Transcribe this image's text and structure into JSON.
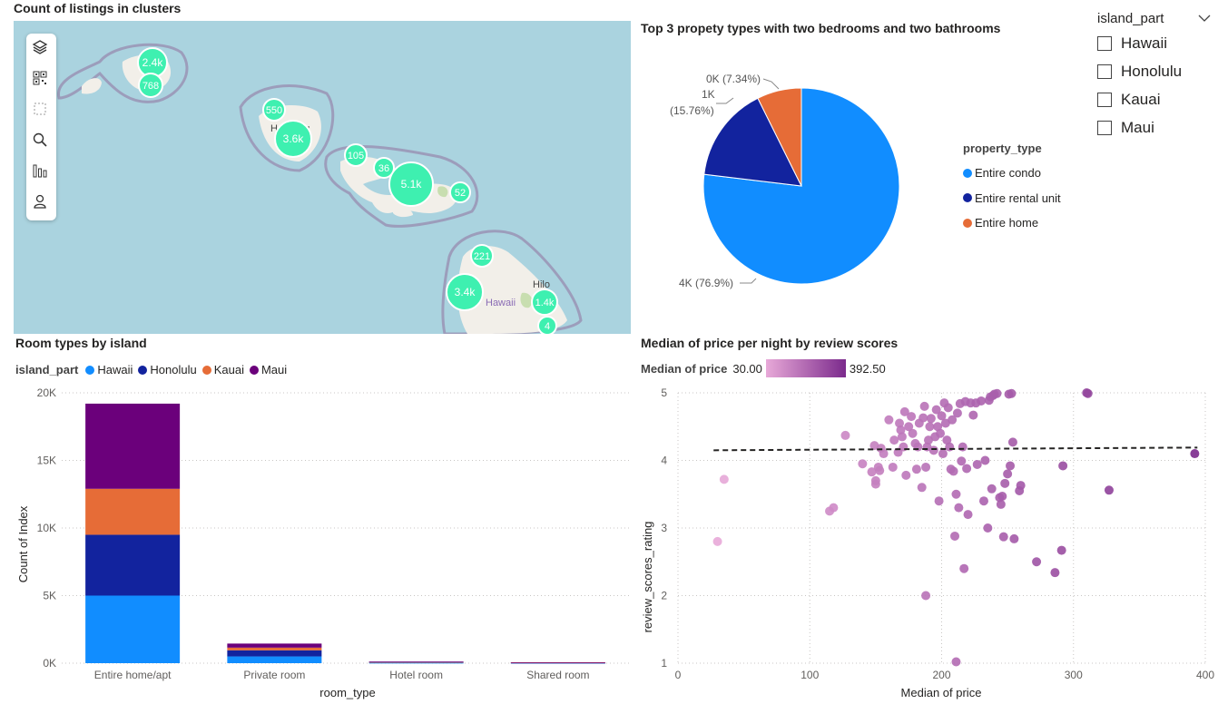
{
  "map": {
    "title": "Count of listings in clusters",
    "toolbar": [
      "layers-icon",
      "qr-icon",
      "select-rect-icon",
      "search-icon",
      "bar-chart-icon",
      "person-icon"
    ],
    "clusters": [
      {
        "label": "2.4k"
      },
      {
        "label": "768"
      },
      {
        "label": "550"
      },
      {
        "label": "3.6k"
      },
      {
        "label": "105"
      },
      {
        "label": "36"
      },
      {
        "label": "5.1k"
      },
      {
        "label": "52"
      },
      {
        "label": "221"
      },
      {
        "label": "3.4k"
      },
      {
        "label": "1.4k"
      },
      {
        "label": "4"
      }
    ],
    "place_labels": {
      "honolulu": "Honolulu",
      "hilo": "Hilo",
      "hawaii": "Hawaii"
    },
    "colors": {
      "water": "#aad3df",
      "land": "#f2efe9",
      "cluster": "#3ef0b0",
      "boundary": "#9a93b5"
    }
  },
  "slicer": {
    "title": "island_part",
    "options": [
      "Hawaii",
      "Honolulu",
      "Kauai",
      "Maui"
    ]
  },
  "pie": {
    "title": "Top 3 propety types with two bedrooms and two bathrooms",
    "legend_title": "property_type",
    "labels": {
      "condo": "4K (76.9%)",
      "rental_line1": "1K",
      "rental_line2": "(15.76%)",
      "home": "0K (7.34%)"
    }
  },
  "bar": {
    "title": "Room types by island",
    "legend_title": "island_part",
    "ylabel": "Count of Index",
    "xlabel": "room_type",
    "yticks": [
      "0K",
      "5K",
      "10K",
      "15K",
      "20K"
    ]
  },
  "scatter": {
    "title": "Median of price per night by review scores",
    "legend_title": "Median of price",
    "gradient_min": "30.00",
    "gradient_max": "392.50",
    "xlabel": "Median of price",
    "ylabel": "review_scores_rating",
    "xticks": [
      "0",
      "100",
      "200",
      "300",
      "400"
    ],
    "yticks": [
      "1",
      "2",
      "3",
      "4",
      "5"
    ],
    "colors": {
      "low": "#e8a9d8",
      "high": "#7b2a8c"
    }
  },
  "chart_data": [
    {
      "type": "pie",
      "title": "Top 3 propety types with two bedrooms and two bathrooms",
      "legend_title": "property_type",
      "categories": [
        "Entire condo",
        "Entire rental unit",
        "Entire home"
      ],
      "values": [
        76.9,
        15.76,
        7.34
      ],
      "value_labels": [
        "4K",
        "1K",
        "0K"
      ],
      "colors": [
        "#118dff",
        "#12239e",
        "#e66c37"
      ],
      "legend_placement": "right"
    },
    {
      "type": "bar",
      "stacked": true,
      "title": "Room types by island",
      "xlabel": "room_type",
      "ylabel": "Count of Index",
      "categories": [
        "Entire home/apt",
        "Private room",
        "Hotel room",
        "Shared room"
      ],
      "series": [
        {
          "name": "Hawaii",
          "color": "#118dff",
          "values": [
            5000,
            500,
            30,
            20
          ]
        },
        {
          "name": "Honolulu",
          "color": "#12239e",
          "values": [
            4500,
            450,
            50,
            20
          ]
        },
        {
          "name": "Kauai",
          "color": "#e66c37",
          "values": [
            3400,
            200,
            10,
            10
          ]
        },
        {
          "name": "Maui",
          "color": "#6b007b",
          "values": [
            6300,
            300,
            30,
            20
          ]
        }
      ],
      "ylim": [
        0,
        20000
      ],
      "grid": true,
      "legend_placement": "top-left"
    },
    {
      "type": "scatter",
      "title": "Median of price per night by review scores",
      "xlabel": "Median of price",
      "ylabel": "review_scores_rating",
      "xlim": [
        0,
        400
      ],
      "ylim": [
        1,
        5
      ],
      "color_scale": [
        30.0,
        392.5
      ],
      "trend_line": [
        [
          27,
          4.15
        ],
        [
          394,
          4.19
        ]
      ],
      "grid": true,
      "points": [
        [
          30,
          2.8
        ],
        [
          35,
          3.72
        ],
        [
          115,
          3.25
        ],
        [
          118,
          3.3
        ],
        [
          127,
          4.37
        ],
        [
          140,
          3.95
        ],
        [
          147,
          3.83
        ],
        [
          149,
          4.22
        ],
        [
          150,
          3.65
        ],
        [
          150,
          3.7
        ],
        [
          152,
          3.9
        ],
        [
          153,
          3.85
        ],
        [
          154,
          4.18
        ],
        [
          156,
          4.1
        ],
        [
          160,
          4.6
        ],
        [
          163,
          3.9
        ],
        [
          164,
          4.3
        ],
        [
          167,
          4.12
        ],
        [
          168,
          4.55
        ],
        [
          169,
          4.45
        ],
        [
          170,
          4.35
        ],
        [
          171,
          4.2
        ],
        [
          172,
          4.72
        ],
        [
          173,
          3.78
        ],
        [
          175,
          4.5
        ],
        [
          177,
          4.65
        ],
        [
          178,
          4.4
        ],
        [
          180,
          4.25
        ],
        [
          181,
          3.87
        ],
        [
          182,
          4.2
        ],
        [
          183,
          4.55
        ],
        [
          185,
          3.6
        ],
        [
          186,
          4.63
        ],
        [
          187,
          4.8
        ],
        [
          188,
          3.9
        ],
        [
          189,
          4.2
        ],
        [
          190,
          4.3
        ],
        [
          191,
          4.5
        ],
        [
          192,
          4.62
        ],
        [
          194,
          4.15
        ],
        [
          195,
          4.35
        ],
        [
          196,
          4.75
        ],
        [
          197,
          4.5
        ],
        [
          198,
          3.4
        ],
        [
          199,
          4.4
        ],
        [
          200,
          4.66
        ],
        [
          201,
          4.1
        ],
        [
          202,
          4.85
        ],
        [
          203,
          4.55
        ],
        [
          204,
          4.3
        ],
        [
          205,
          4.78
        ],
        [
          206,
          4.2
        ],
        [
          207,
          3.87
        ],
        [
          208,
          4.6
        ],
        [
          209,
          3.84
        ],
        [
          210,
          2.88
        ],
        [
          211,
          3.5
        ],
        [
          212,
          4.7
        ],
        [
          213,
          3.3
        ],
        [
          214,
          4.84
        ],
        [
          215,
          3.99
        ],
        [
          216,
          4.2
        ],
        [
          217,
          2.4
        ],
        [
          218,
          4.87
        ],
        [
          219,
          3.88
        ],
        [
          220,
          3.2
        ],
        [
          222,
          4.85
        ],
        [
          224,
          4.67
        ],
        [
          226,
          4.85
        ],
        [
          227,
          3.94
        ],
        [
          230,
          4.88
        ],
        [
          232,
          3.4
        ],
        [
          233,
          4.0
        ],
        [
          235,
          3.0
        ],
        [
          236,
          4.89
        ],
        [
          237,
          4.94
        ],
        [
          238,
          3.58
        ],
        [
          239,
          4.96
        ],
        [
          240,
          4.98
        ],
        [
          242,
          4.99
        ],
        [
          244,
          3.45
        ],
        [
          245,
          3.35
        ],
        [
          246,
          3.47
        ],
        [
          247,
          2.87
        ],
        [
          248,
          3.66
        ],
        [
          250,
          3.8
        ],
        [
          251,
          4.98
        ],
        [
          252,
          3.92
        ],
        [
          253,
          4.99
        ],
        [
          254,
          4.27
        ],
        [
          255,
          2.84
        ],
        [
          259,
          3.55
        ],
        [
          260,
          3.63
        ],
        [
          272,
          2.5
        ],
        [
          286,
          2.34
        ],
        [
          291,
          2.67
        ],
        [
          292,
          3.92
        ],
        [
          310,
          5.0
        ],
        [
          311,
          4.99
        ],
        [
          327,
          3.56
        ],
        [
          392,
          4.1
        ],
        [
          188,
          2.0
        ],
        [
          211,
          1.02
        ]
      ]
    }
  ]
}
